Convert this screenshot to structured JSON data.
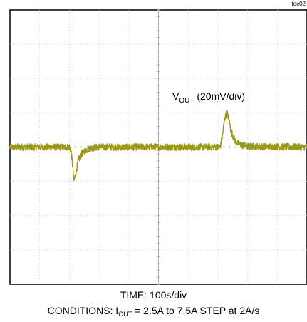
{
  "figure_tag": "toc02",
  "chart_data": {
    "type": "line",
    "title": "",
    "grid": true,
    "grid_divisions": {
      "x": 10,
      "y": 8
    },
    "trace_color": "#9a9a1a",
    "channel_label": {
      "main": "V",
      "sub": "OUT",
      "rest": " (20mV/div)"
    },
    "x_axis": {
      "label": "TIME: 100s/div",
      "range_div": [
        0,
        10
      ]
    },
    "y_axis": {
      "range_div": [
        -4,
        4
      ],
      "baseline_div": 0
    },
    "series": [
      {
        "values_x_div": [
          0,
          2.0,
          2.05,
          2.1,
          2.15,
          2.22,
          2.3,
          2.45,
          2.6,
          2.8,
          3.0,
          7.08,
          7.15,
          7.22,
          7.3,
          7.36,
          7.45,
          7.6,
          7.8,
          8.0,
          10
        ],
        "values_y_div": [
          0,
          0,
          -0.1,
          -0.45,
          -1.0,
          -0.75,
          -0.38,
          -0.15,
          -0.07,
          -0.02,
          0,
          0,
          0.3,
          0.8,
          1.02,
          0.85,
          0.45,
          0.15,
          0.05,
          0.02,
          0
        ]
      }
    ],
    "noise_div": 0.1
  },
  "conditions": {
    "prefix": "CONDITIONS: I",
    "sub": "OUT",
    "rest": " = 2.5A to 7.5A STEP at 2A/s"
  }
}
